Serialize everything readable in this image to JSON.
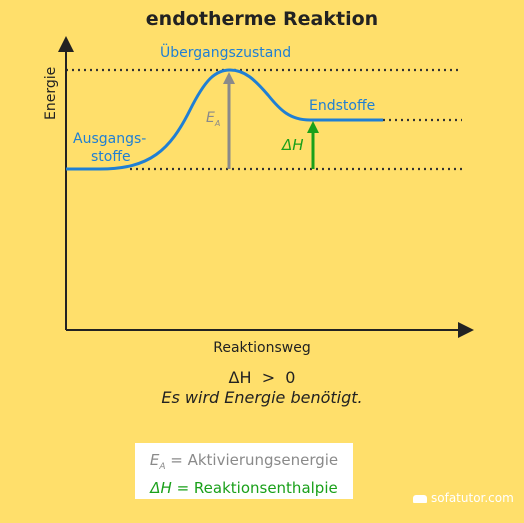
{
  "title": "endotherme Reaktion",
  "axes": {
    "ylabel": "Energie",
    "xlabel": "Reaktionsweg"
  },
  "labels": {
    "transition_state": "Übergangszustand",
    "products": "Endstoffe",
    "reactants_line1": "Ausgangs-",
    "reactants_line2": "stoffe",
    "activation_symbol": "E",
    "activation_subscript": "A",
    "enthalpy_symbol": "ΔH"
  },
  "condition": "ΔH  >  0",
  "note": "Es wird Energie benötigt.",
  "legend": {
    "ea_symbol": "E",
    "ea_subscript": "A",
    "ea_text": " = Aktivierungsenergie",
    "dh_symbol": "ΔH",
    "dh_text": " = Reaktionsenthalpie"
  },
  "logo": "sofatutor.com",
  "colors": {
    "background": "#FFDF6B",
    "curve": "#1F7FD4",
    "activation_arrow": "#8A8A8A",
    "enthalpy_arrow": "#1AA01A",
    "axis": "#222222"
  }
}
